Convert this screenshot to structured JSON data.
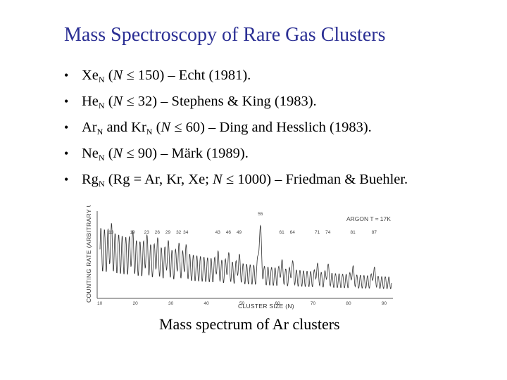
{
  "title": "Mass Spectroscopy of Rare Gas Clusters",
  "bullet_symbol": "•",
  "bullets": [
    {
      "a": "Xe",
      "sub": "N",
      "b": " (",
      "var": "N",
      "c": " ≤ 150) – Echt (1981)."
    },
    {
      "a": "He",
      "sub": "N",
      "b": " (",
      "var": "N",
      "c": " ≤ 32) – Stephens & King (1983)."
    },
    {
      "a": "Ar",
      "sub": "N",
      "b": " and Kr",
      "sub2": "N",
      "b2": " (",
      "var": "N",
      "c": " ≤ 60) – Ding and Hesslich (1983)."
    },
    {
      "a": "Ne",
      "sub": "N",
      "b": " (",
      "var": "N",
      "c": " ≤ 90) – Märk (1989)."
    },
    {
      "a": "Rg",
      "sub": "N",
      "b": " (Rg = Ar, Kr, Xe; ",
      "var": "N",
      "c": " ≤ 1000) – Friedman & Buehler."
    }
  ],
  "figure": {
    "ylabel": "COUNTING RATE (ARBITRARY UNITS)",
    "xlabel": "CLUSTER SIZE (N)",
    "annotation": "ARGON T ≈ 17K",
    "peak_labels": [
      "13",
      "19",
      "23",
      "26",
      "29",
      "32",
      "34",
      "43",
      "46",
      "49",
      "55",
      "61",
      "64",
      "71",
      "74",
      "81",
      "87"
    ],
    "x_ticks": [
      "10",
      "20",
      "30",
      "40",
      "50",
      "60",
      "70",
      "80",
      "90"
    ]
  },
  "caption": "Mass spectrum of Ar clusters"
}
